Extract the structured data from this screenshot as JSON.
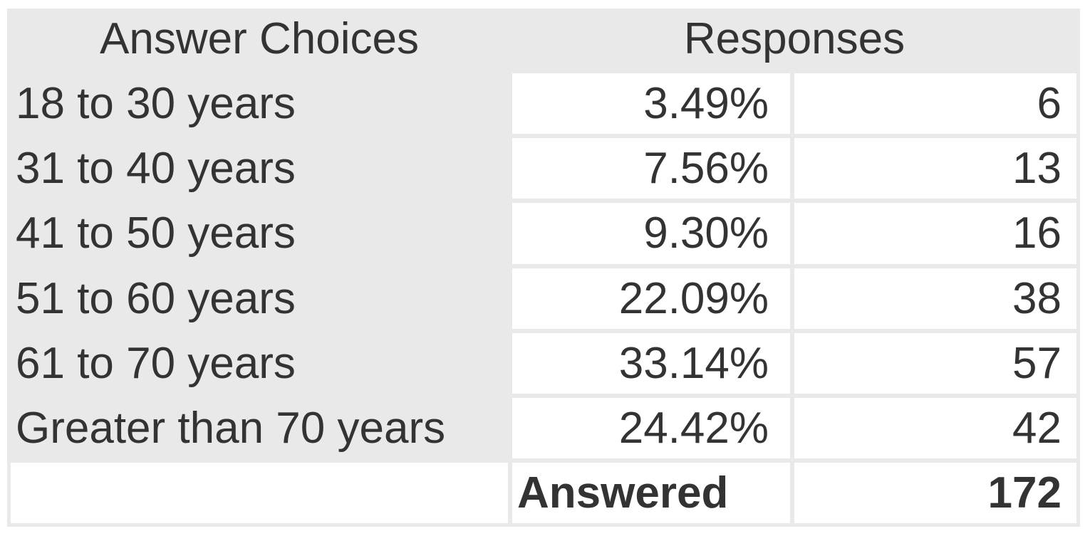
{
  "table": {
    "header": {
      "answer_choices": "Answer Choices",
      "responses": "Responses"
    },
    "rows": [
      {
        "label": "18 to 30 years",
        "percent": "3.49%",
        "count": "6"
      },
      {
        "label": "31 to 40 years",
        "percent": "7.56%",
        "count": "13"
      },
      {
        "label": "41 to 50 years",
        "percent": "9.30%",
        "count": "16"
      },
      {
        "label": "51 to 60 years",
        "percent": "22.09%",
        "count": "38"
      },
      {
        "label": "61 to 70 years",
        "percent": "33.14%",
        "count": "57"
      },
      {
        "label": "Greater than 70 years",
        "percent": "24.42%",
        "count": "42"
      }
    ],
    "footer": {
      "answered_label": "Answered",
      "answered_total": "172"
    }
  },
  "colors": {
    "table_background": "#e9e9e9",
    "cell_background": "#ffffff",
    "text": "#333333"
  },
  "chart_data": {
    "type": "table",
    "title": "",
    "columns": [
      "Answer Choices",
      "Responses %",
      "Responses count"
    ],
    "categories": [
      "18 to 30 years",
      "31 to 40 years",
      "41 to 50 years",
      "51 to 60 years",
      "61 to 70 years",
      "Greater than 70 years"
    ],
    "series": [
      {
        "name": "Responses %",
        "values": [
          3.49,
          7.56,
          9.3,
          22.09,
          33.14,
          24.42
        ]
      },
      {
        "name": "Responses count",
        "values": [
          6,
          13,
          16,
          38,
          57,
          42
        ]
      }
    ],
    "answered_total": 172
  }
}
